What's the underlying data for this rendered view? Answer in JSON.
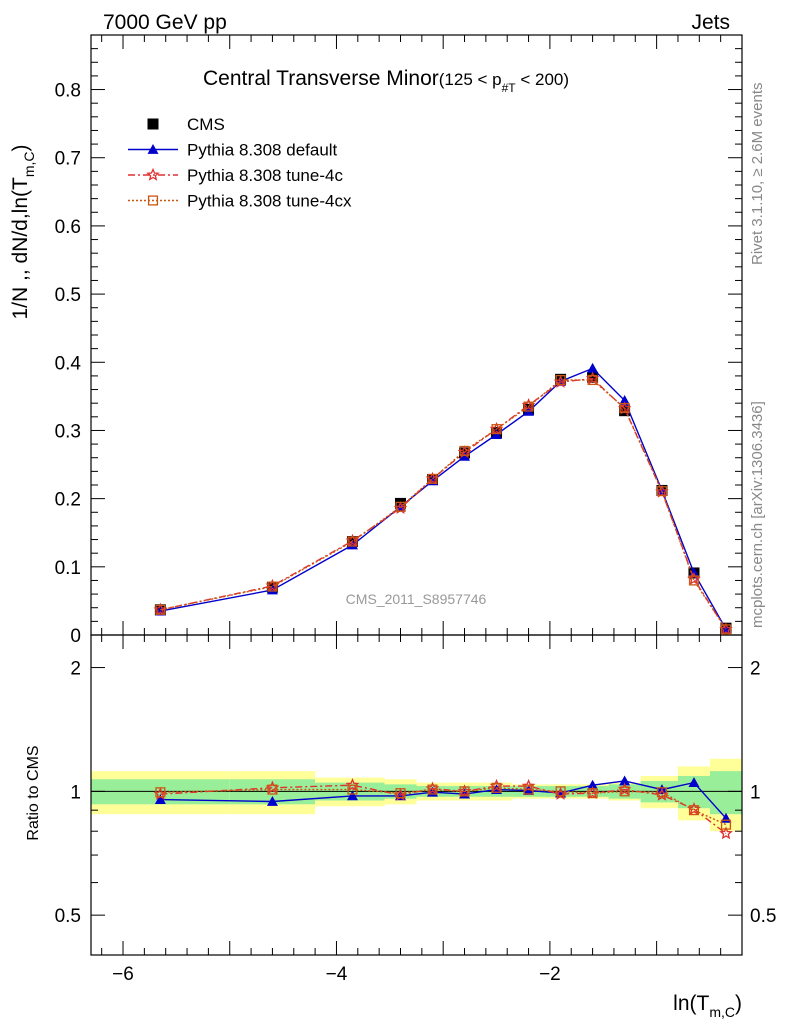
{
  "header": {
    "left": "7000 GeV pp",
    "right": "Jets"
  },
  "side_labels": {
    "rivet": "Rivet 3.1.10, ≥ 2.6M events",
    "mcplots": "mcplots.cern.ch [arXiv:1306.3436]"
  },
  "chart_data": {
    "type": "line",
    "title": "Central Transverse Minor",
    "title_suffix": "(125 < p",
    "title_suffix_sub": "#T",
    "title_suffix_end": " < 200)",
    "analysis_tag": "CMS_2011_S8957746",
    "xlabel": "ln(T",
    "xlabel_sub": "m,C",
    "xlabel_end": ")",
    "ylabel": "1/N ,, dN/d,ln(T",
    "ylabel_sub": "m,C",
    "ylabel_end": ")",
    "ratio_ylabel": "Ratio to CMS",
    "xlim": [
      -6.3,
      -0.2
    ],
    "ylim": [
      0,
      0.88
    ],
    "ratio_ylim": [
      0.4,
      2.4
    ],
    "ratio_log": true,
    "x_ticks": [
      -6,
      -4,
      -2
    ],
    "x_tick_labels": [
      "−6",
      "−4",
      "−2"
    ],
    "y_ticks": [
      0,
      0.1,
      0.2,
      0.3,
      0.4,
      0.5,
      0.6,
      0.7,
      0.8
    ],
    "y_tick_labels": [
      "0",
      "0.1",
      "0.2",
      "0.3",
      "0.4",
      "0.5",
      "0.6",
      "0.7",
      "0.8"
    ],
    "ratio_ticks": [
      0.5,
      1,
      2
    ],
    "ratio_tick_labels": [
      "0.5",
      "1",
      "2"
    ],
    "legend_position": "top-left",
    "x": [
      -5.65,
      -4.6,
      -3.85,
      -3.4,
      -3.1,
      -2.8,
      -2.5,
      -2.2,
      -1.9,
      -1.6,
      -1.3,
      -0.95,
      -0.65,
      -0.35
    ],
    "x_edges": [
      -6.3,
      -5.0,
      -4.2,
      -3.55,
      -3.25,
      -2.95,
      -2.65,
      -2.35,
      -2.05,
      -1.75,
      -1.45,
      -1.15,
      -0.8,
      -0.5,
      -0.2
    ],
    "cms": {
      "name": "CMS",
      "values": [
        0.037,
        0.07,
        0.137,
        0.193,
        0.228,
        0.267,
        0.297,
        0.331,
        0.375,
        0.378,
        0.329,
        0.212,
        0.091,
        0.01
      ],
      "errors": [
        0.002,
        0.002,
        0.004,
        0.005,
        0.005,
        0.005,
        0.006,
        0.006,
        0.006,
        0.006,
        0.006,
        0.005,
        0.003,
        0.001
      ]
    },
    "ratio_band_inner": [
      0.07,
      0.07,
      0.05,
      0.04,
      0.03,
      0.03,
      0.03,
      0.03,
      0.03,
      0.03,
      0.04,
      0.06,
      0.09,
      0.12
    ],
    "ratio_band_outer": [
      0.12,
      0.12,
      0.08,
      0.07,
      0.05,
      0.05,
      0.05,
      0.04,
      0.04,
      0.04,
      0.05,
      0.09,
      0.15,
      0.2
    ],
    "series": [
      {
        "name": "Pythia 8.308 default",
        "color": "#0000cc",
        "dash": "",
        "marker": "triangle",
        "values": [
          0.035,
          0.066,
          0.132,
          0.188,
          0.226,
          0.262,
          0.294,
          0.328,
          0.372,
          0.391,
          0.344,
          0.212,
          0.091,
          0.0085
        ],
        "ratio": [
          0.955,
          0.945,
          0.975,
          0.975,
          0.995,
          0.985,
          1.01,
          1.005,
          0.99,
          1.035,
          1.06,
          1.01,
          1.05,
          0.86
        ]
      },
      {
        "name": "Pythia 8.308 tune-4c",
        "color": "#e03030",
        "dash": "7,3,2,3",
        "marker": "star",
        "values": [
          0.037,
          0.072,
          0.138,
          0.186,
          0.229,
          0.268,
          0.302,
          0.337,
          0.371,
          0.376,
          0.332,
          0.21,
          0.082,
          0.008
        ],
        "ratio": [
          0.985,
          1.02,
          1.035,
          0.98,
          1.015,
          1.0,
          1.03,
          1.03,
          0.985,
          0.99,
          1.01,
          0.98,
          0.905,
          0.79
        ]
      },
      {
        "name": "Pythia 8.308 tune-4cx",
        "color": "#cc5511",
        "dash": "2,2",
        "marker": "square-open",
        "values": [
          0.037,
          0.071,
          0.137,
          0.188,
          0.229,
          0.27,
          0.302,
          0.335,
          0.374,
          0.374,
          0.333,
          0.211,
          0.08,
          0.0083
        ],
        "ratio": [
          0.995,
          1.01,
          1.01,
          0.99,
          1.01,
          1.0,
          1.02,
          1.01,
          1.0,
          0.99,
          1.0,
          0.995,
          0.9,
          0.83
        ]
      }
    ]
  }
}
